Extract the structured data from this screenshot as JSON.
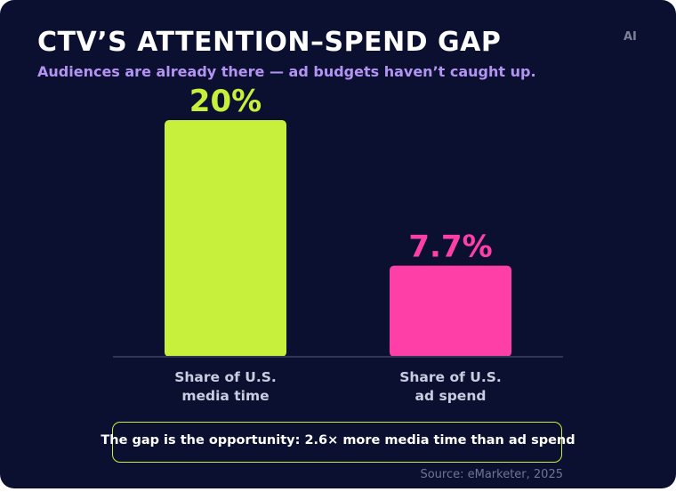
{
  "title": "CTV’S ATTENTION–SPEND GAP",
  "subtitle": "Audiences are already there — ad budgets haven’t caught up.",
  "badge": "AI",
  "callout": "The gap is the opportunity: 2.6× more media time than ad spend",
  "source": "Source: eMarketer, 2025",
  "colors": {
    "background": "#0b1030",
    "media_time": "#c6f03c",
    "ad_spend": "#ff3fa8",
    "subtitle": "#b394f2"
  },
  "chart_data": {
    "type": "bar",
    "title": "CTV’S ATTENTION–SPEND GAP",
    "xlabel": "",
    "ylabel": "",
    "ylim": [
      0,
      20
    ],
    "grid": false,
    "categories": [
      [
        "Share of U.S.",
        "media time"
      ],
      [
        "Share of U.S.",
        "ad spend"
      ]
    ],
    "values": [
      20,
      7.7
    ],
    "value_labels": [
      "20%",
      "7.7%"
    ],
    "colors": [
      "#c6f03c",
      "#ff3fa8"
    ]
  }
}
